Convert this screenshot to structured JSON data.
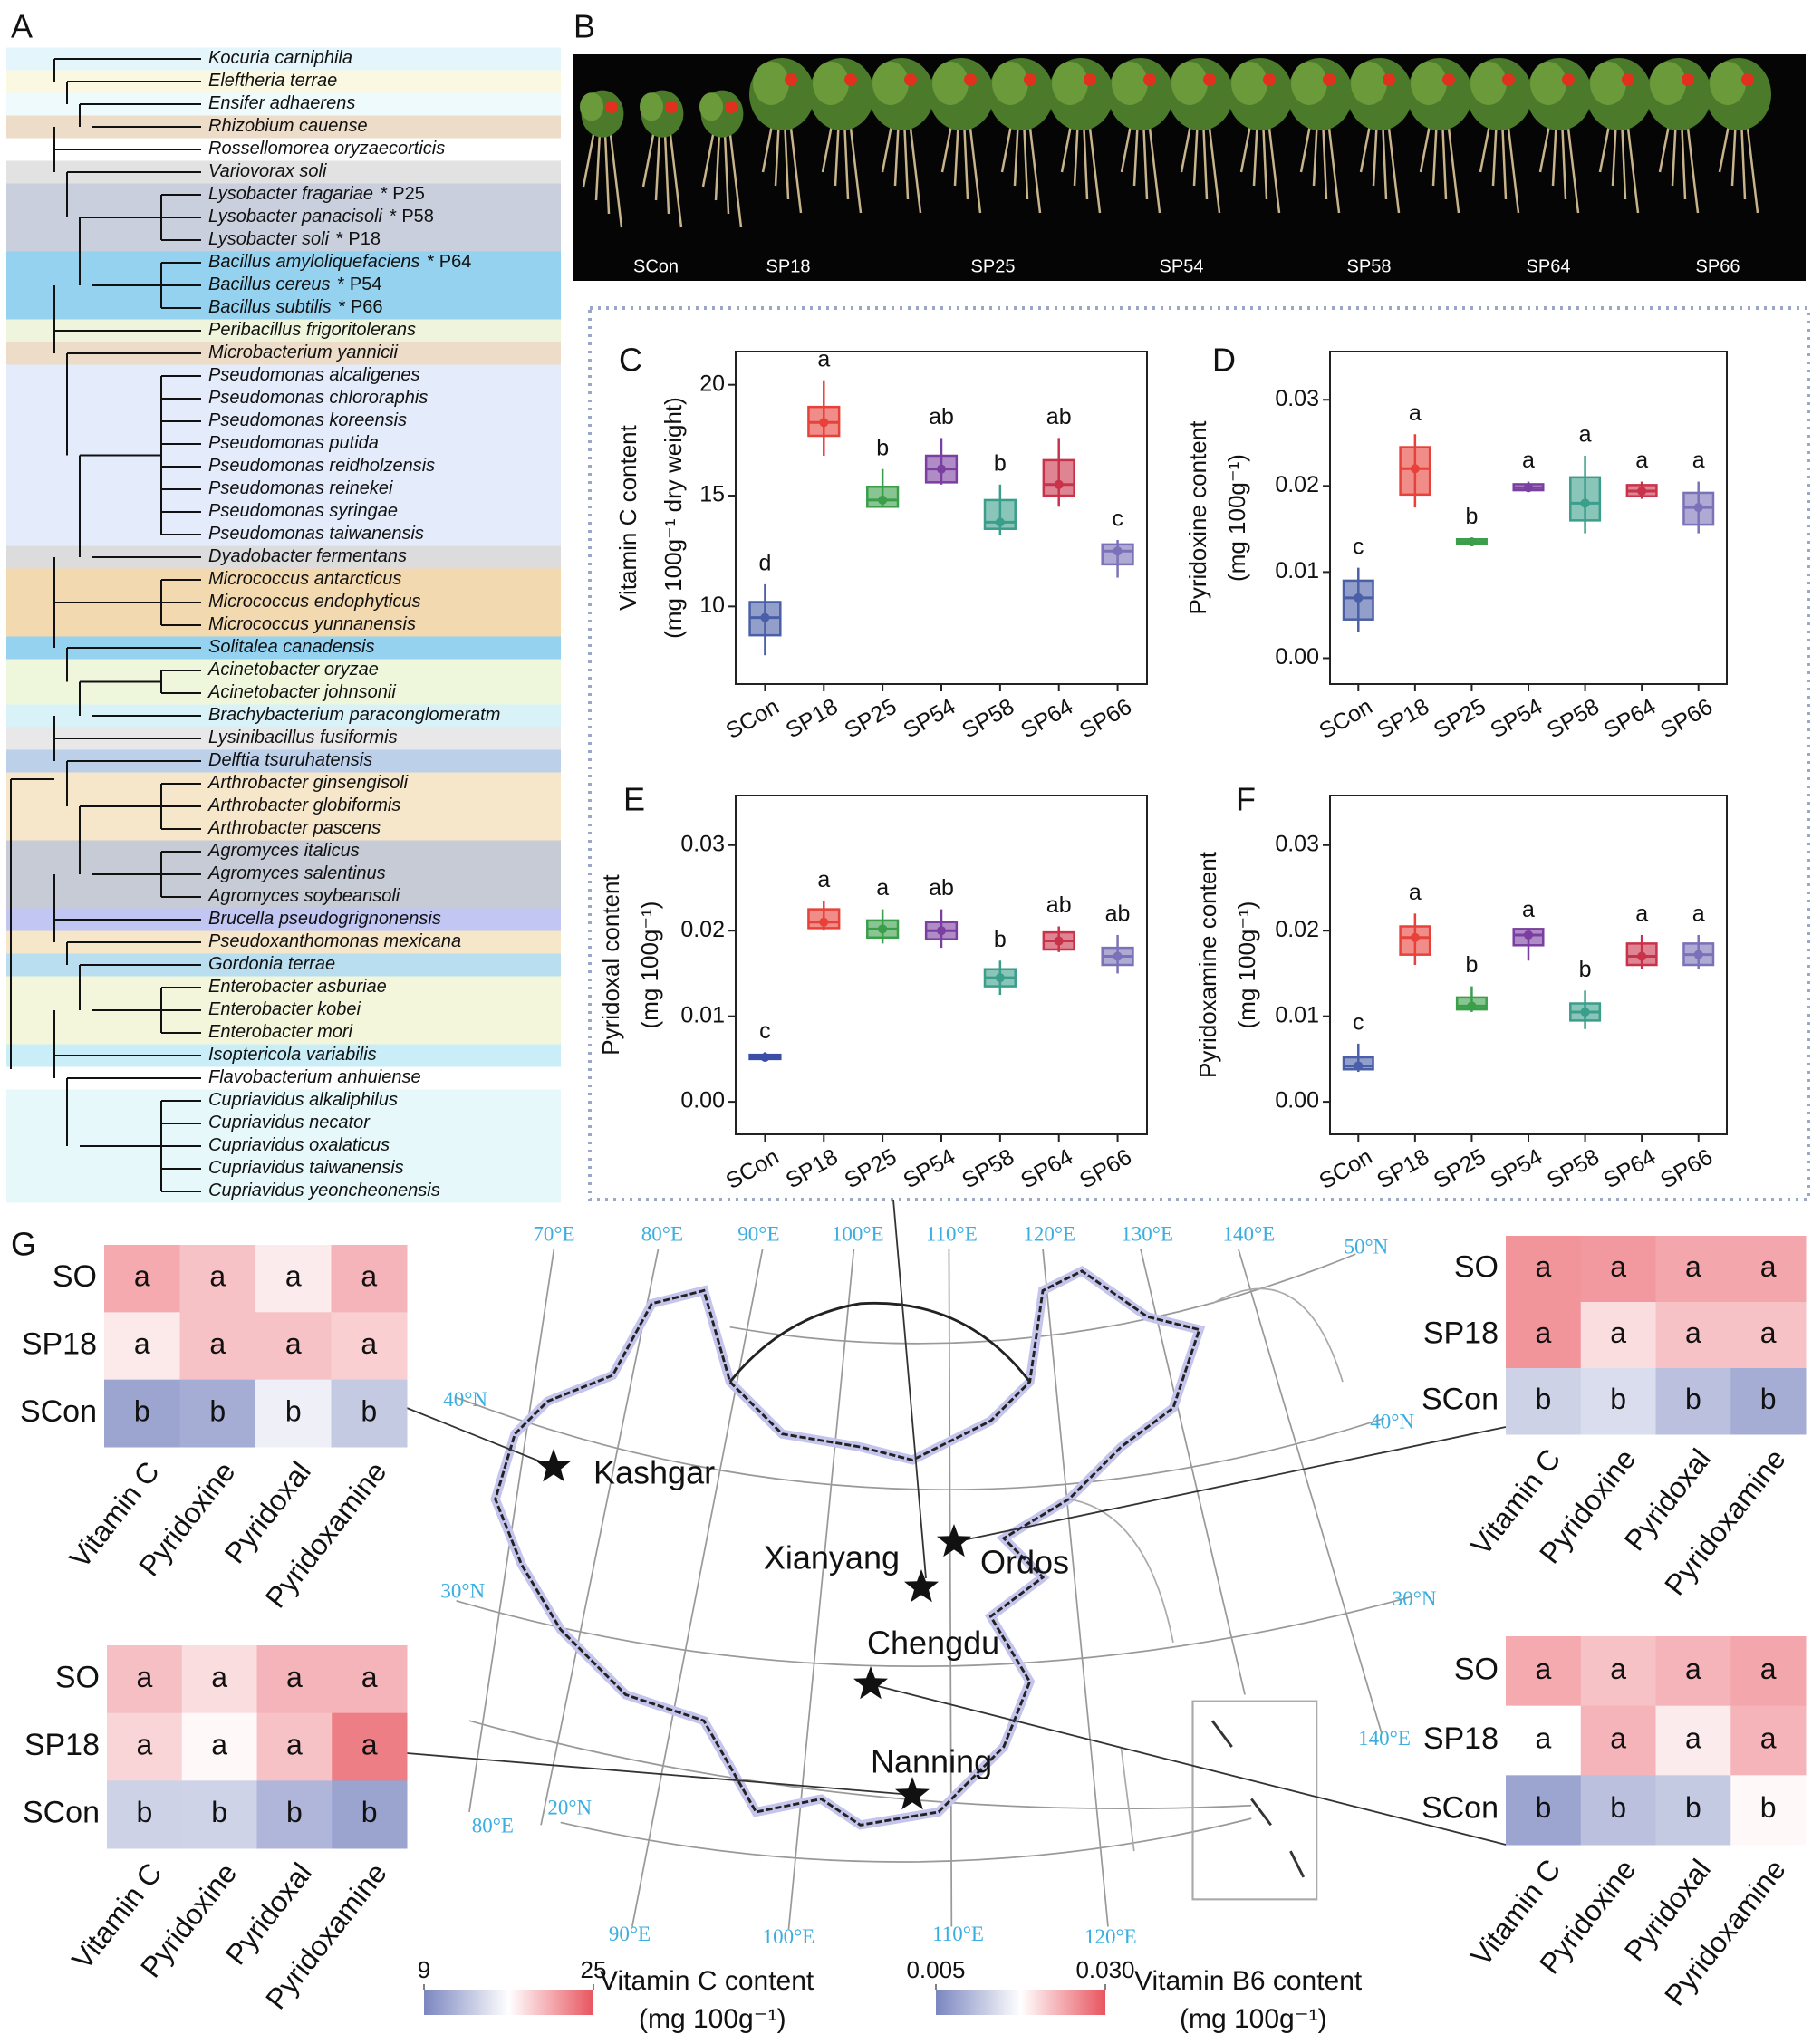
{
  "panel_labels": [
    "A",
    "B",
    "C",
    "D",
    "E",
    "F",
    "G"
  ],
  "tree": {
    "bands": [
      {
        "color": "#e4f6fb",
        "leaves": [
          {
            "name": "Kocuria carniphila"
          }
        ]
      },
      {
        "color": "#fbf8e1",
        "leaves": [
          {
            "name": "Eleftheria terrae"
          }
        ]
      },
      {
        "color": "#eefafc",
        "leaves": [
          {
            "name": "Ensifer adhaerens"
          }
        ]
      },
      {
        "color": "#ecdcc8",
        "leaves": [
          {
            "name": "Rhizobium cauense"
          }
        ]
      },
      {
        "color": "#ffffff",
        "leaves": [
          {
            "name": "Rossellomorea oryzaecorticis"
          }
        ]
      },
      {
        "color": "#e2e2e2",
        "leaves": [
          {
            "name": "Variovorax soli"
          }
        ]
      },
      {
        "color": "#c9cfdc",
        "leaves": [
          {
            "name": "Lysobacter fragariae",
            "tag": "* P25"
          },
          {
            "name": "Lysobacter panacisoli",
            "tag": "* P58"
          },
          {
            "name": "Lysobacter soli",
            "tag": "* P18"
          }
        ]
      },
      {
        "color": "#94d2f0",
        "leaves": [
          {
            "name": "Bacillus amyloliquefaciens",
            "tag": "* P64"
          },
          {
            "name": "Bacillus cereus",
            "tag": "* P54"
          },
          {
            "name": "Bacillus subtilis",
            "tag": "* P66"
          }
        ]
      },
      {
        "color": "#eef5dc",
        "leaves": [
          {
            "name": "Peribacillus frigoritolerans"
          }
        ]
      },
      {
        "color": "#ecdcc8",
        "leaves": [
          {
            "name": "Microbacterium yannicii"
          }
        ]
      },
      {
        "color": "#e4ebfa",
        "leaves": [
          {
            "name": "Pseudomonas alcaligenes"
          },
          {
            "name": "Pseudomonas chlororaphis"
          },
          {
            "name": "Pseudomonas koreensis"
          },
          {
            "name": "Pseudomonas putida"
          },
          {
            "name": "Pseudomonas reidholzensis"
          },
          {
            "name": "Pseudomonas reinekei"
          },
          {
            "name": "Pseudomonas syringae"
          },
          {
            "name": "Pseudomonas taiwanensis"
          }
        ]
      },
      {
        "color": "#dcdcdc",
        "leaves": [
          {
            "name": "Dyadobacter fermentans"
          }
        ]
      },
      {
        "color": "#f3d9b0",
        "leaves": [
          {
            "name": "Micrococcus antarcticus"
          },
          {
            "name": "Micrococcus endophyticus"
          },
          {
            "name": "Micrococcus yunnanensis"
          }
        ]
      },
      {
        "color": "#94d2f0",
        "leaves": [
          {
            "name": "Solitalea canadensis"
          }
        ]
      },
      {
        "color": "#eef6dc",
        "leaves": [
          {
            "name": "Acinetobacter oryzae"
          },
          {
            "name": "Acinetobacter johnsonii"
          }
        ]
      },
      {
        "color": "#d8f2f8",
        "leaves": [
          {
            "name": "Brachybacterium paraconglomeratm"
          }
        ]
      },
      {
        "color": "#e8e8e8",
        "leaves": [
          {
            "name": "Lysinibacillus fusiformis"
          }
        ]
      },
      {
        "color": "#bcd0ea",
        "leaves": [
          {
            "name": "Delftia tsuruhatensis"
          }
        ]
      },
      {
        "color": "#f6e6ca",
        "leaves": [
          {
            "name": "Arthrobacter ginsengisoli"
          },
          {
            "name": "Arthrobacter globiformis"
          },
          {
            "name": "Arthrobacter pascens"
          }
        ]
      },
      {
        "color": "#c6cbd6",
        "leaves": [
          {
            "name": "Agromyces italicus"
          },
          {
            "name": "Agromyces salentinus"
          },
          {
            "name": "Agromyces soybeansoli"
          }
        ]
      },
      {
        "color": "#c2c6f2",
        "leaves": [
          {
            "name": "Brucella pseudogrignonensis"
          }
        ]
      },
      {
        "color": "#f6e6ca",
        "leaves": [
          {
            "name": "Pseudoxanthomonas mexicana"
          }
        ]
      },
      {
        "color": "#b8def0",
        "leaves": [
          {
            "name": "Gordonia terrae"
          }
        ]
      },
      {
        "color": "#f4f6dc",
        "leaves": [
          {
            "name": "Enterobacter asburiae"
          },
          {
            "name": "Enterobacter kobei"
          },
          {
            "name": "Enterobacter mori"
          }
        ]
      },
      {
        "color": "#c9eef8",
        "leaves": [
          {
            "name": "Isoptericola variabilis"
          }
        ]
      },
      {
        "color": "#ffffff",
        "leaves": [
          {
            "name": "Flavobacterium anhuiense"
          }
        ]
      },
      {
        "color": "#e6f8fa",
        "leaves": [
          {
            "name": "Cupriavidus alkaliphilus"
          },
          {
            "name": "Cupriavidus necator"
          },
          {
            "name": "Cupriavidus oxalaticus"
          },
          {
            "name": "Cupriavidus taiwanensis"
          },
          {
            "name": "Cupriavidus yeoncheonensis"
          }
        ]
      }
    ]
  },
  "photo": {
    "labels": [
      "SCon",
      "SP18",
      "SP25",
      "SP54",
      "SP58",
      "SP64",
      "SP66"
    ]
  },
  "chart_data": [
    {
      "type": "box",
      "ylabel": "Vitamin C content",
      "yunit": "(mg 100g⁻¹ dry weight)",
      "categories": [
        "SCon",
        "SP18",
        "SP25",
        "SP54",
        "SP58",
        "SP64",
        "SP66"
      ],
      "colors": [
        "#4a5fa8",
        "#e8413a",
        "#3a9e4a",
        "#7a3fa0",
        "#3a9e8a",
        "#c8324a",
        "#7a72b8"
      ],
      "ylim": [
        6.5,
        21.5
      ],
      "yticks": [
        10,
        15,
        20
      ],
      "min": [
        7.8,
        16.8,
        14.5,
        15.5,
        13.2,
        14.5,
        11.3
      ],
      "q1": [
        8.7,
        17.7,
        14.5,
        15.6,
        13.5,
        15,
        11.9
      ],
      "median": [
        9.5,
        18.3,
        14.8,
        16.2,
        13.8,
        15.5,
        12.5
      ],
      "q3": [
        10.2,
        19,
        15.4,
        16.8,
        14.8,
        16.6,
        12.8
      ],
      "max": [
        11,
        20.2,
        16.2,
        17.6,
        15.5,
        17.6,
        13
      ],
      "letters": [
        "d",
        "a",
        "b",
        "ab",
        "b",
        "ab",
        "c"
      ]
    },
    {
      "type": "box",
      "ylabel": "Pyridoxine content",
      "yunit": "(mg 100g⁻¹)",
      "categories": [
        "SCon",
        "SP18",
        "SP25",
        "SP54",
        "SP58",
        "SP64",
        "SP66"
      ],
      "colors": [
        "#4a5fa8",
        "#e8413a",
        "#3a9e4a",
        "#7a3fa0",
        "#3a9e8a",
        "#c8324a",
        "#7a72b8"
      ],
      "ylim": [
        -0.003,
        0.0356
      ],
      "yticks": [
        {
          "value": 0,
          "label": "0.00"
        },
        0.01,
        0.02,
        0.03
      ],
      "min": [
        0.003,
        0.0175,
        0.013,
        0.0195,
        0.0145,
        0.0185,
        0.0145
      ],
      "q1": [
        0.0045,
        0.019,
        0.0133,
        0.0195,
        0.016,
        0.0188,
        0.0155
      ],
      "median": [
        0.007,
        0.022,
        0.0135,
        0.0198,
        0.018,
        0.0194,
        0.0175
      ],
      "q3": [
        0.009,
        0.0245,
        0.0138,
        0.0202,
        0.021,
        0.0201,
        0.0192
      ],
      "max": [
        0.0105,
        0.026,
        0.014,
        0.0205,
        0.0235,
        0.0205,
        0.0205
      ],
      "letters": [
        "c",
        "a",
        "b",
        "a",
        "a",
        "a",
        "a"
      ]
    },
    {
      "type": "box",
      "ylabel": "Pyridoxal content",
      "yunit": "(mg 100g⁻¹)",
      "categories": [
        "SCon",
        "SP18",
        "SP25",
        "SP54",
        "SP58",
        "SP64",
        "SP66"
      ],
      "colors": [
        "#3a4ea8",
        "#e8413a",
        "#3a9e4a",
        "#7a3fa0",
        "#3a9e8a",
        "#c8324a",
        "#7a72b8"
      ],
      "ylim": [
        -0.0038,
        0.0358
      ],
      "yticks": [
        {
          "value": 0,
          "label": "0.00"
        },
        0.01,
        0.02,
        0.03
      ],
      "min": [
        0.0048,
        0.02,
        0.0185,
        0.018,
        0.0125,
        0.0175,
        0.015
      ],
      "q1": [
        0.005,
        0.0203,
        0.0192,
        0.019,
        0.0135,
        0.0178,
        0.016
      ],
      "median": [
        0.0052,
        0.021,
        0.0202,
        0.02,
        0.0145,
        0.0188,
        0.017
      ],
      "q3": [
        0.0055,
        0.0225,
        0.0212,
        0.021,
        0.0155,
        0.0198,
        0.018
      ],
      "max": [
        0.0058,
        0.0235,
        0.0225,
        0.0225,
        0.0165,
        0.0205,
        0.0195
      ],
      "letters": [
        "c",
        "a",
        "a",
        "ab",
        "b",
        "ab",
        "ab"
      ]
    },
    {
      "type": "box",
      "ylabel": "Pyridoxamine content",
      "yunit": "(mg 100g⁻¹)",
      "categories": [
        "SCon",
        "SP18",
        "SP25",
        "SP54",
        "SP58",
        "SP64",
        "SP66"
      ],
      "colors": [
        "#4a5fa8",
        "#e8413a",
        "#3a9e4a",
        "#7a3fa0",
        "#3a9e8a",
        "#c8324a",
        "#7a72b8"
      ],
      "ylim": [
        -0.0038,
        0.0358
      ],
      "yticks": [
        {
          "value": 0,
          "label": "0.00"
        },
        0.01,
        0.02,
        0.03
      ],
      "min": [
        0.0035,
        0.016,
        0.0105,
        0.0165,
        0.0085,
        0.0155,
        0.0155
      ],
      "q1": [
        0.0038,
        0.0172,
        0.0108,
        0.0183,
        0.0095,
        0.016,
        0.016
      ],
      "median": [
        0.0042,
        0.0192,
        0.0112,
        0.0195,
        0.0105,
        0.017,
        0.0172
      ],
      "q3": [
        0.0052,
        0.0205,
        0.0122,
        0.0202,
        0.0115,
        0.0185,
        0.0185
      ],
      "max": [
        0.0068,
        0.022,
        0.0135,
        0.02,
        0.013,
        0.0195,
        0.0195
      ],
      "letters": [
        "c",
        "a",
        "b",
        "a",
        "b",
        "a",
        "a"
      ]
    }
  ],
  "heatmaps": [
    {
      "rows": [
        "SO",
        "SP18",
        "SCon"
      ],
      "columns": [
        "Vitamin C",
        "Pyridoxine",
        "Pyridoxal",
        "Pyridoxamine"
      ],
      "letters": [
        [
          "a",
          "a",
          "a",
          "a"
        ],
        [
          "a",
          "a",
          "a",
          "a"
        ],
        [
          "b",
          "b",
          "b",
          "b"
        ]
      ],
      "values": [
        [
          21,
          0.022,
          0.019,
          0.023
        ],
        [
          18,
          0.022,
          0.022,
          0.021
        ],
        [
          11,
          0.009,
          0.016,
          0.012
        ]
      ]
    },
    {
      "rows": [
        "SO",
        "SP18",
        "SCon"
      ],
      "columns": [
        "Vitamin C",
        "Pyridoxine",
        "Pyridoxal",
        "Pyridoxamine"
      ],
      "letters": [
        [
          "a",
          "a",
          "a",
          "a"
        ],
        [
          "a",
          "a",
          "a",
          "a"
        ],
        [
          "b",
          "b",
          "b",
          "b"
        ]
      ],
      "values": [
        [
          22,
          0.025,
          0.024,
          0.024
        ],
        [
          22,
          0.02,
          0.022,
          0.022
        ],
        [
          14,
          0.014,
          0.011,
          0.009
        ]
      ]
    },
    {
      "rows": [
        "SO",
        "SP18",
        "SCon"
      ],
      "columns": [
        "Vitamin C",
        "Pyridoxine",
        "Pyridoxal",
        "Pyridoxamine"
      ],
      "letters": [
        [
          "a",
          "a",
          "a",
          "a"
        ],
        [
          "a",
          "a",
          "a",
          "a"
        ],
        [
          "b",
          "b",
          "b",
          "b"
        ]
      ],
      "values": [
        [
          20,
          0.02,
          0.023,
          0.023
        ],
        [
          19,
          0.018,
          0.022,
          0.027
        ],
        [
          14,
          0.013,
          0.01,
          0.008
        ]
      ]
    },
    {
      "rows": [
        "SO",
        "SP18",
        "SCon"
      ],
      "columns": [
        "Vitamin C",
        "Pyridoxine",
        "Pyridoxal",
        "Pyridoxamine"
      ],
      "letters": [
        [
          "a",
          "a",
          "a",
          "a"
        ],
        [
          "a",
          "a",
          "a",
          "a"
        ],
        [
          "b",
          "b",
          "b",
          "b"
        ]
      ],
      "values": [
        [
          21,
          0.022,
          0.023,
          0.024
        ],
        [
          17,
          0.023,
          0.019,
          0.023
        ],
        [
          11,
          0.011,
          0.012,
          0.018
        ]
      ]
    }
  ],
  "colorbars": [
    {
      "title": "Vitamin  C content",
      "unit": "(mg 100g⁻¹)",
      "lim": [
        9,
        25
      ],
      "ticks": [
        9,
        25
      ],
      "colors": [
        "#7b86c0",
        "#ffffff",
        "#e8555f"
      ]
    },
    {
      "title": "Vitamin  B6 content",
      "unit": "(mg 100g⁻¹)",
      "lim": [
        0.005,
        0.03
      ],
      "ticks": [
        0.005,
        {
          "value": 0.03,
          "label": "0.030"
        }
      ],
      "colors": [
        "#7b86c0",
        "#ffffff",
        "#e8555f"
      ]
    }
  ],
  "map": {
    "lon_labels": [
      "70°E",
      "80°E",
      "90°E",
      "100°E",
      "110°E",
      "120°E",
      "130°E",
      "140°E",
      "80°E",
      "140°E",
      "90°E",
      "100°E",
      "110°E",
      "120°E"
    ],
    "lat_labels": [
      "50°N",
      "40°N",
      "40°N",
      "30°N",
      "30°N",
      "20°N"
    ],
    "cities": [
      "Kashgar",
      "Ordos",
      "Xianyang",
      "Chengdu",
      "Nanning"
    ]
  }
}
